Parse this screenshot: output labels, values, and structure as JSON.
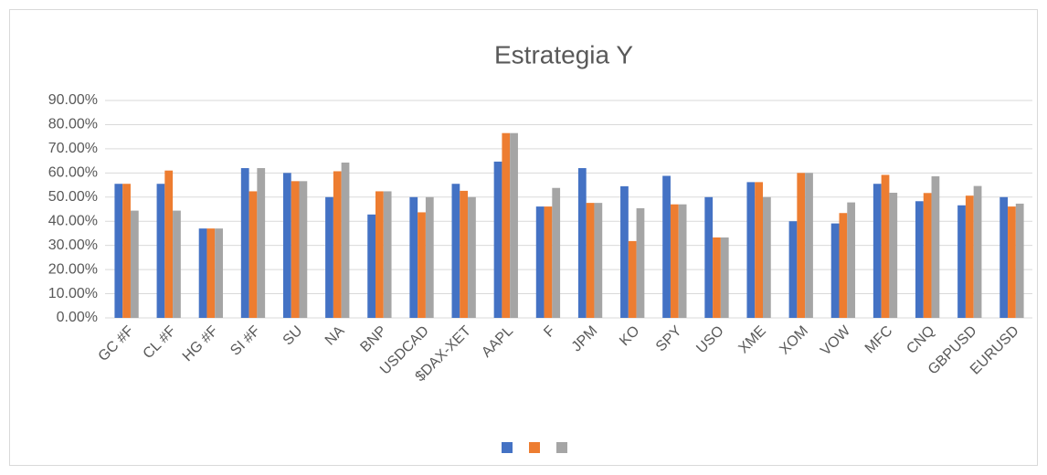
{
  "chart_data": {
    "type": "bar",
    "title": "Estrategia Y",
    "categories": [
      "GC #F",
      "CL #F",
      "HG #F",
      "SI #F",
      "SU",
      "NA",
      "BNP",
      "USDCAD",
      "$DAX-XET",
      "AAPL",
      "F",
      "JPM",
      "KO",
      "SPY",
      "USO",
      "XME",
      "XOM",
      "VOW",
      "MFC",
      "CNQ",
      "GBPUSD",
      "EURUSD"
    ],
    "series": [
      {
        "color": "#4472c4",
        "values": [
          55.5,
          55.5,
          37,
          62,
          60,
          50,
          42.8,
          50,
          55.5,
          64.7,
          46.1,
          62,
          54.5,
          58.8,
          50,
          56.2,
          40,
          39.1,
          55.5,
          48.3,
          46.6,
          50
        ]
      },
      {
        "color": "#ed7d31",
        "values": [
          55.5,
          61,
          37,
          52.4,
          56.6,
          60.7,
          52.4,
          43.7,
          52.6,
          76.5,
          46.1,
          47.6,
          31.8,
          47,
          33.3,
          56.2,
          60,
          43.4,
          59.2,
          51.7,
          50.6,
          46.1
        ]
      },
      {
        "color": "#a5a5a5",
        "values": [
          44.4,
          44.4,
          37,
          62,
          56.6,
          64.3,
          52.4,
          50,
          50,
          76.5,
          53.8,
          47.6,
          45.4,
          47,
          33.3,
          50,
          60,
          47.8,
          51.8,
          58.6,
          54.6,
          47.3
        ]
      }
    ],
    "ylim": [
      0,
      90
    ],
    "yticks": [
      {
        "value": 0,
        "label": "0.00%"
      },
      {
        "value": 10,
        "label": "10.00%"
      },
      {
        "value": 20,
        "label": "20.00%"
      },
      {
        "value": 30,
        "label": "30.00%"
      },
      {
        "value": 40,
        "label": "40.00%"
      },
      {
        "value": 50,
        "label": "50.00%"
      },
      {
        "value": 60,
        "label": "60.00%"
      },
      {
        "value": 70,
        "label": "70.00%"
      },
      {
        "value": 80,
        "label": "80.00%"
      },
      {
        "value": 90,
        "label": "90.00%"
      }
    ],
    "grid": true,
    "legend": "bottom"
  }
}
